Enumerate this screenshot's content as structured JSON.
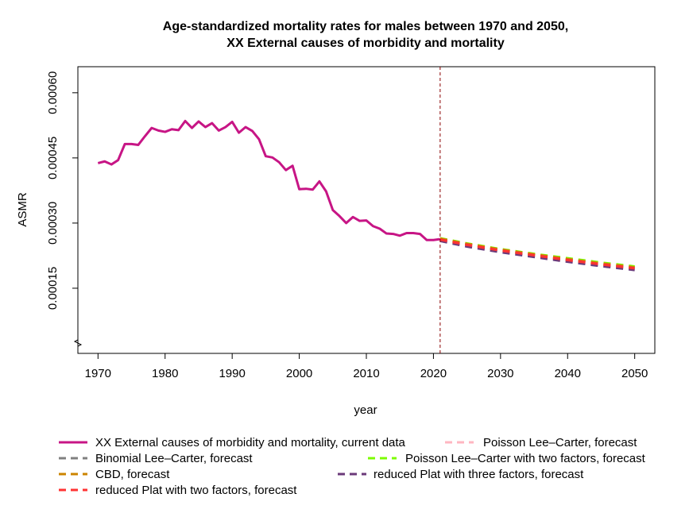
{
  "chart_data": {
    "type": "line",
    "title": "Age-standardized mortality rates for males between 1970 and 2050,",
    "subtitle": "XX External causes of morbidity and mortality",
    "xlabel": "year",
    "ylabel": "ASMR",
    "xlim": [
      1967,
      2053
    ],
    "ylim": [
      0.0,
      0.00066
    ],
    "axis_break": true,
    "x_ticks": [
      1970,
      1980,
      1990,
      2000,
      2010,
      2020,
      2030,
      2040,
      2050
    ],
    "y_ticks": [
      0.00015,
      0.0003,
      0.00045,
      0.0006
    ],
    "y_tick_labels": [
      "0.00015",
      "0.00030",
      "0.00045",
      "0.00060"
    ],
    "forecast_start_line": 2021,
    "grid": false,
    "legend_position": "bottom",
    "series": [
      {
        "name": "XX External causes of morbidity and mortality, current data",
        "color": "#C71585",
        "dash": "solid",
        "x": [
          1970,
          1971,
          1972,
          1973,
          1974,
          1975,
          1976,
          1977,
          1978,
          1979,
          1980,
          1981,
          1982,
          1983,
          1984,
          1985,
          1986,
          1987,
          1988,
          1989,
          1990,
          1991,
          1992,
          1993,
          1994,
          1995,
          1996,
          1997,
          1998,
          1999,
          2000,
          2001,
          2002,
          2003,
          2004,
          2005,
          2006,
          2007,
          2008,
          2009,
          2010,
          2011,
          2012,
          2013,
          2014,
          2015,
          2016,
          2017,
          2018,
          2019,
          2020,
          2021
        ],
        "y": [
          0.000438,
          0.000442,
          0.000435,
          0.000445,
          0.000482,
          0.000482,
          0.00048,
          0.0005,
          0.000519,
          0.000513,
          0.00051,
          0.000516,
          0.000514,
          0.000535,
          0.000519,
          0.000534,
          0.000521,
          0.00053,
          0.000513,
          0.000521,
          0.000533,
          0.000508,
          0.000521,
          0.000512,
          0.000493,
          0.000454,
          0.000451,
          0.00044,
          0.000422,
          0.000432,
          0.000378,
          0.000379,
          0.000377,
          0.000396,
          0.000373,
          0.00033,
          0.000316,
          0.0003,
          0.000314,
          0.000305,
          0.000306,
          0.000293,
          0.000287,
          0.000276,
          0.000275,
          0.000271,
          0.000277,
          0.000277,
          0.000275,
          0.000261,
          0.000261,
          0.000263
        ]
      },
      {
        "name": "Poisson Lee–Carter, forecast",
        "color": "#FFB6C1",
        "dash": "dashed",
        "x": [
          2021,
          2025,
          2030,
          2035,
          2040,
          2045,
          2050
        ],
        "y": [
          0.000264,
          0.000252,
          0.000238,
          0.000227,
          0.000216,
          0.000206,
          0.000198
        ]
      },
      {
        "name": "Binomial Lee–Carter, forecast",
        "color": "#808080",
        "dash": "dashed",
        "x": [
          2021,
          2025,
          2030,
          2035,
          2040,
          2045,
          2050
        ],
        "y": [
          0.000262,
          0.00025,
          0.000236,
          0.000225,
          0.000214,
          0.000204,
          0.000195
        ]
      },
      {
        "name": "Poisson Lee–Carter with two factors, forecast",
        "color": "#7CFC00",
        "dash": "dashed",
        "x": [
          2021,
          2025,
          2030,
          2035,
          2040,
          2045,
          2050
        ],
        "y": [
          0.000265,
          0.000253,
          0.00024,
          0.000229,
          0.000219,
          0.000209,
          0.0002
        ]
      },
      {
        "name": "CBD, forecast",
        "color": "#CC8400",
        "dash": "dashed",
        "x": [
          2021,
          2025,
          2030,
          2035,
          2040,
          2045,
          2050
        ],
        "y": [
          0.000264,
          0.000252,
          0.000239,
          0.000228,
          0.000217,
          0.000207,
          0.000198
        ]
      },
      {
        "name": "reduced Plat with three factors, forecast",
        "color": "#6B3A7A",
        "dash": "dashed",
        "x": [
          2021,
          2025,
          2030,
          2035,
          2040,
          2045,
          2050
        ],
        "y": [
          0.000259,
          0.000246,
          0.000233,
          0.000222,
          0.000211,
          0.000201,
          0.000192
        ]
      },
      {
        "name": "reduced Plat with two factors, forecast",
        "color": "#FF3333",
        "dash": "dashed",
        "x": [
          2021,
          2025,
          2030,
          2035,
          2040,
          2045,
          2050
        ],
        "y": [
          0.000262,
          0.00025,
          0.000237,
          0.000226,
          0.000215,
          0.000205,
          0.000196
        ]
      }
    ],
    "legend_order": [
      0,
      1,
      2,
      3,
      4,
      5,
      6
    ]
  }
}
